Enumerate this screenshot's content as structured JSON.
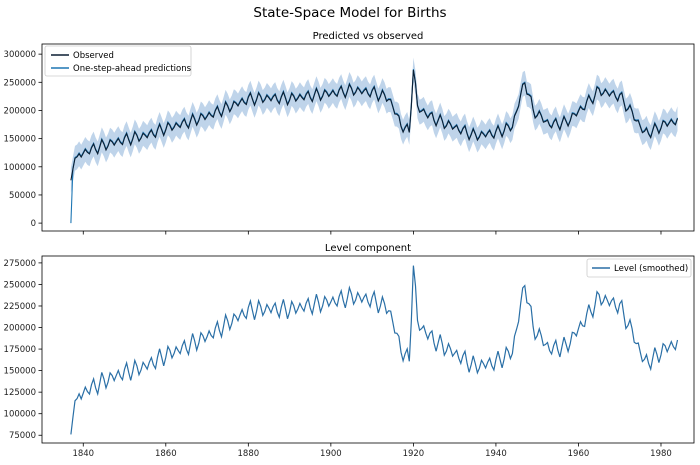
{
  "figure": {
    "suptitle": "State-Space Model for Births"
  },
  "colors": {
    "observed": "#0b1f33",
    "prediction": "#1f77b4",
    "band": "#a9c6e3",
    "level": "#2a6fa6"
  },
  "chart_data": [
    {
      "type": "line",
      "title": "Predicted vs observed",
      "xlim": [
        1830,
        1988
      ],
      "ylim": [
        -14000,
        318000
      ],
      "x_ticks": [
        1840,
        1860,
        1880,
        1900,
        1920,
        1940,
        1960,
        1980
      ],
      "x_tick_labels_shown": false,
      "y_ticks": [
        0,
        50000,
        100000,
        150000,
        200000,
        250000,
        300000
      ],
      "legend": {
        "placement": "upper-left",
        "entries": [
          "Observed",
          "One-step-ahead predictions"
        ]
      },
      "x_range": [
        1837,
        1984
      ],
      "interval_halfwidth": 22000,
      "series": [
        {
          "name": "Observed",
          "points": [
            [
              1837,
              76000
            ],
            [
              1838,
              115000
            ],
            [
              1840,
              125000
            ],
            [
              1845,
              138000
            ],
            [
              1850,
              148000
            ],
            [
              1855,
              155000
            ],
            [
              1860,
              168000
            ],
            [
              1865,
              178000
            ],
            [
              1870,
              190000
            ],
            [
              1875,
              205000
            ],
            [
              1880,
              220000
            ],
            [
              1885,
              222000
            ],
            [
              1890,
              221000
            ],
            [
              1895,
              226000
            ],
            [
              1900,
              230000
            ],
            [
              1905,
              236000
            ],
            [
              1910,
              232000
            ],
            [
              1914,
              222000
            ],
            [
              1917,
              175000
            ],
            [
              1919,
              160000
            ],
            [
              1920,
              275000
            ],
            [
              1921,
              205000
            ],
            [
              1925,
              185000
            ],
            [
              1930,
              170000
            ],
            [
              1935,
              155000
            ],
            [
              1940,
              160000
            ],
            [
              1944,
              172000
            ],
            [
              1947,
              252000
            ],
            [
              1949,
              200000
            ],
            [
              1953,
              175000
            ],
            [
              1957,
              178000
            ],
            [
              1961,
              205000
            ],
            [
              1965,
              235000
            ],
            [
              1970,
              225000
            ],
            [
              1973,
              195000
            ],
            [
              1976,
              160000
            ],
            [
              1978,
              163000
            ],
            [
              1981,
              176000
            ],
            [
              1984,
              182000
            ]
          ]
        },
        {
          "name": "One-step-ahead predictions",
          "first_value": 0,
          "note_first": "starts at 0 in 1837"
        }
      ]
    },
    {
      "type": "line",
      "title": "Level component",
      "xlim": [
        1830,
        1988
      ],
      "ylim": [
        66000,
        283000
      ],
      "x_ticks": [
        1840,
        1860,
        1880,
        1900,
        1920,
        1940,
        1960,
        1980
      ],
      "y_ticks": [
        75000,
        100000,
        125000,
        150000,
        175000,
        200000,
        225000,
        250000,
        275000
      ],
      "legend": {
        "placement": "upper-right",
        "entries": [
          "Level (smoothed)"
        ]
      },
      "series": [
        {
          "name": "Level (smoothed)",
          "same_as": "Observed"
        }
      ]
    }
  ]
}
